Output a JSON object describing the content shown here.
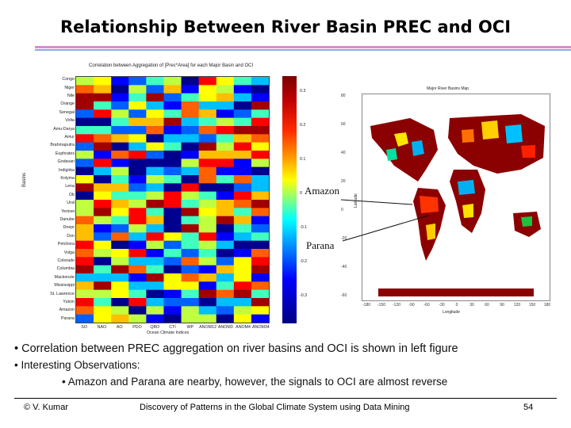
{
  "slide": {
    "title": "Relationship Between River Basin PREC and OCI",
    "bullets": [
      "• Correlation between PREC aggregation on river basins and OCI is shown in left figure",
      "• Interesting Observations:",
      "• Amazon and Parana are nearby, however, the signals to OCI are almost reverse"
    ],
    "footer": {
      "author": "© V. Kumar",
      "subtitle": "Discovery of Patterns in the Global Climate System using Data Mining",
      "page": "54"
    }
  },
  "heatmap": {
    "title": "Correlation between Aggregation of [Prec*Area] for each Major Basin and OCI",
    "ylabel": "Basins",
    "xlabel": "Ocean Climate Indices",
    "basins": [
      "Congo",
      "Niger",
      "Nile",
      "Orange",
      "Senegal",
      "Volta",
      "Amu-Darya",
      "Amur",
      "Brahmaputra",
      "Euphrates",
      "Godavari",
      "Indigirka",
      "Kolyma",
      "Lena",
      "Ob",
      "Ural",
      "Yenisei",
      "Danube",
      "Dnepr",
      "Don",
      "Petchora",
      "Volga",
      "Colorado",
      "Columbia",
      "Mackenzie",
      "Mississippi",
      "St. Lawrence",
      "Yukon",
      "Amazon",
      "Parana"
    ],
    "indices": [
      "SO",
      "NAO",
      "AO",
      "PDO",
      "QBO",
      "CTI",
      "WP",
      "ANOM12",
      "ANOM3",
      "ANOM4",
      "ANOM34"
    ],
    "colorbar_ticks": [
      "0.3",
      "0.2",
      "0.1",
      "0",
      "-0.1",
      "-0.2",
      "-0.3"
    ]
  },
  "map": {
    "title": "Major River Basins Map",
    "xlabel": "Longitude",
    "ylabel": "Latitude",
    "lat_ticks": [
      "80",
      "60",
      "40",
      "20",
      "0",
      "-20",
      "-40",
      "-60"
    ],
    "lon_ticks": [
      "-180",
      "-150",
      "-120",
      "-90",
      "-60",
      "-30",
      "0",
      "30",
      "60",
      "90",
      "120",
      "150",
      "180"
    ]
  },
  "callouts": {
    "amazon": "Amazon",
    "parana": "Parana"
  }
}
